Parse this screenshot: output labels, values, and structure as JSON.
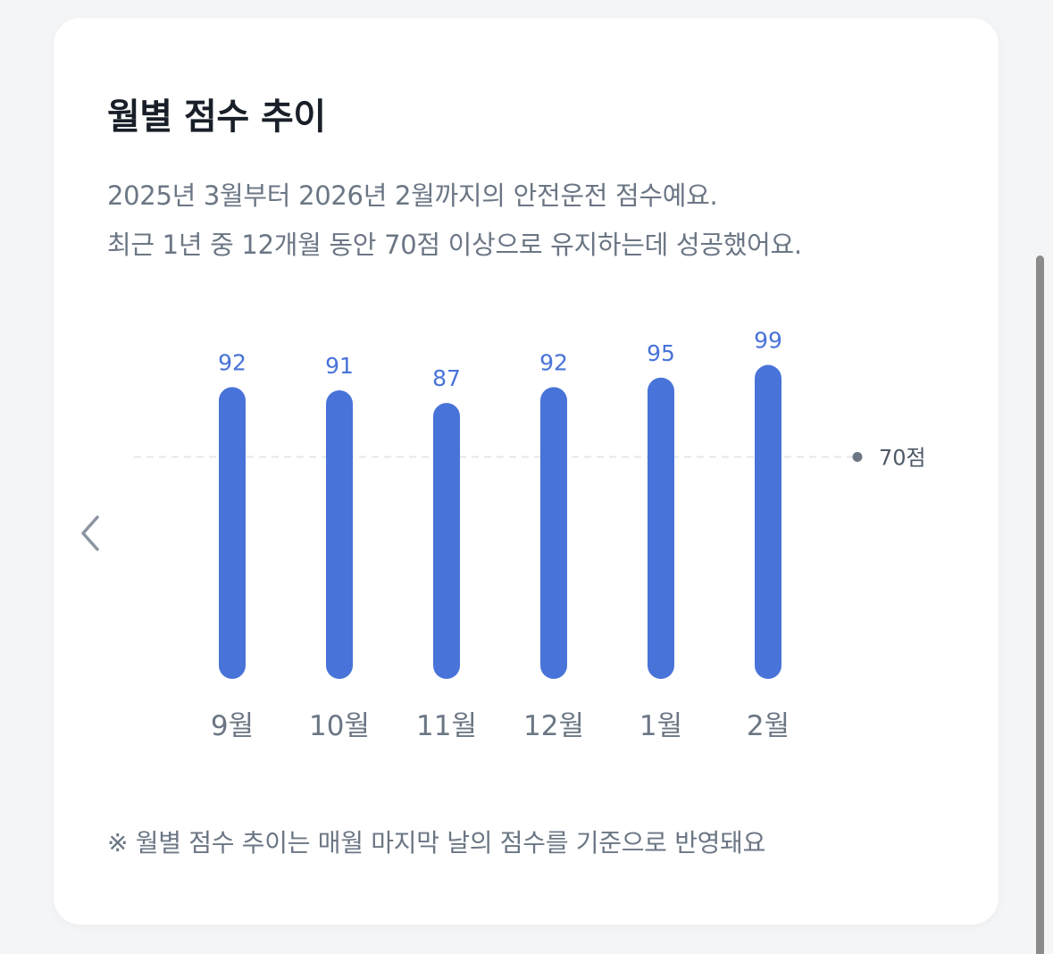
{
  "card": {
    "title": "월별 점수 추이",
    "description_lines": [
      "2025년 3월부터 2026년 2월까지의 안전운전 점수예요.",
      "최근 1년 중 12개월 동안 70점 이상으로 유지하는데 성공했어요."
    ],
    "footnote": "※ 월별 점수 추이는 매월 마지막 날의 점수를 기준으로 반영돼요"
  },
  "icons": {
    "prev": "chevron-left-icon"
  },
  "colors": {
    "bar": "#4873d8",
    "value_label": "#4873d8",
    "month_label": "#6b7684",
    "threshold_line": "#e5e8eb",
    "threshold_dot": "#6b7684",
    "threshold_label": "#4e5968"
  },
  "chart_data": {
    "type": "bar",
    "categories": [
      "9월",
      "10월",
      "11월",
      "12월",
      "1월",
      "2월"
    ],
    "values": [
      92,
      91,
      87,
      92,
      95,
      99
    ],
    "threshold": {
      "value": 70,
      "label": "70점"
    },
    "grid": false,
    "legend": "none"
  }
}
